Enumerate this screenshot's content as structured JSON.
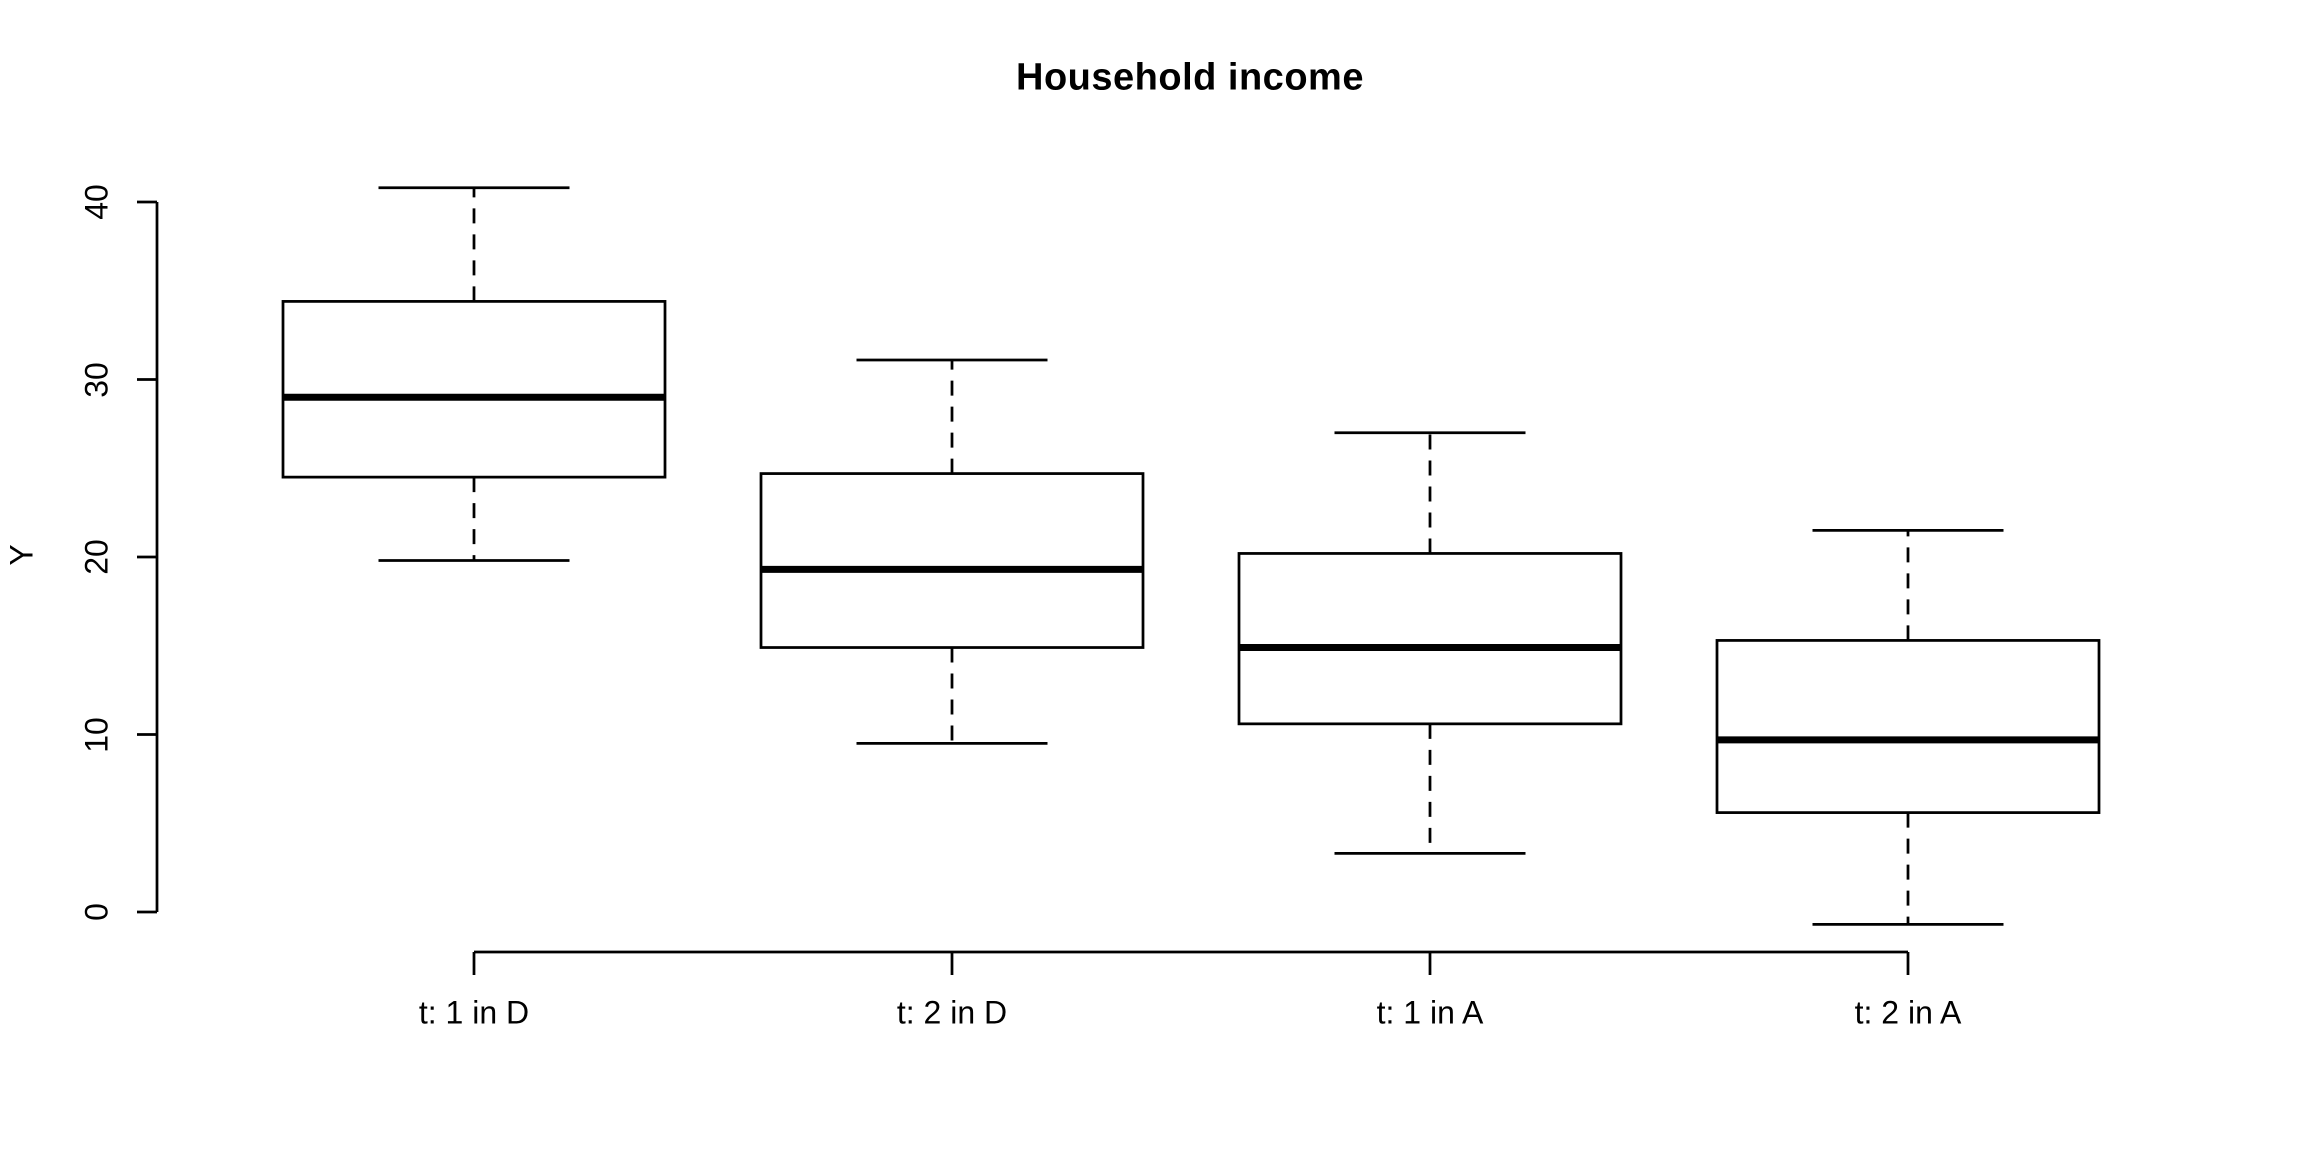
{
  "chart_data": {
    "type": "boxplot",
    "title": "Household income",
    "ylabel": "Y",
    "xlabel": "",
    "categories": [
      "t: 1 in D",
      "t: 2 in D",
      "t: 1 in A",
      "t: 2 in A"
    ],
    "y_ticks": [
      0,
      10,
      20,
      30,
      40
    ],
    "ylim": [
      -1.5,
      41.5
    ],
    "grid": false,
    "orientation": "vertical",
    "legend": "none",
    "colors": {
      "line": "#000000",
      "box_fill": "#ffffff",
      "background": "#ffffff"
    },
    "series": [
      {
        "name": "t: 1 in D",
        "whisker_low": 19.8,
        "q1": 24.5,
        "median": 29.0,
        "q3": 34.4,
        "whisker_high": 40.8,
        "outliers": []
      },
      {
        "name": "t: 2 in D",
        "whisker_low": 9.5,
        "q1": 14.9,
        "median": 19.3,
        "q3": 24.7,
        "whisker_high": 31.1,
        "outliers": []
      },
      {
        "name": "t: 1 in A",
        "whisker_low": 3.3,
        "q1": 10.6,
        "median": 14.9,
        "q3": 20.2,
        "whisker_high": 27.0,
        "outliers": []
      },
      {
        "name": "t: 2 in A",
        "whisker_low": -0.7,
        "q1": 5.6,
        "median": 9.7,
        "q3": 15.3,
        "whisker_high": 21.5,
        "outliers": []
      }
    ]
  }
}
